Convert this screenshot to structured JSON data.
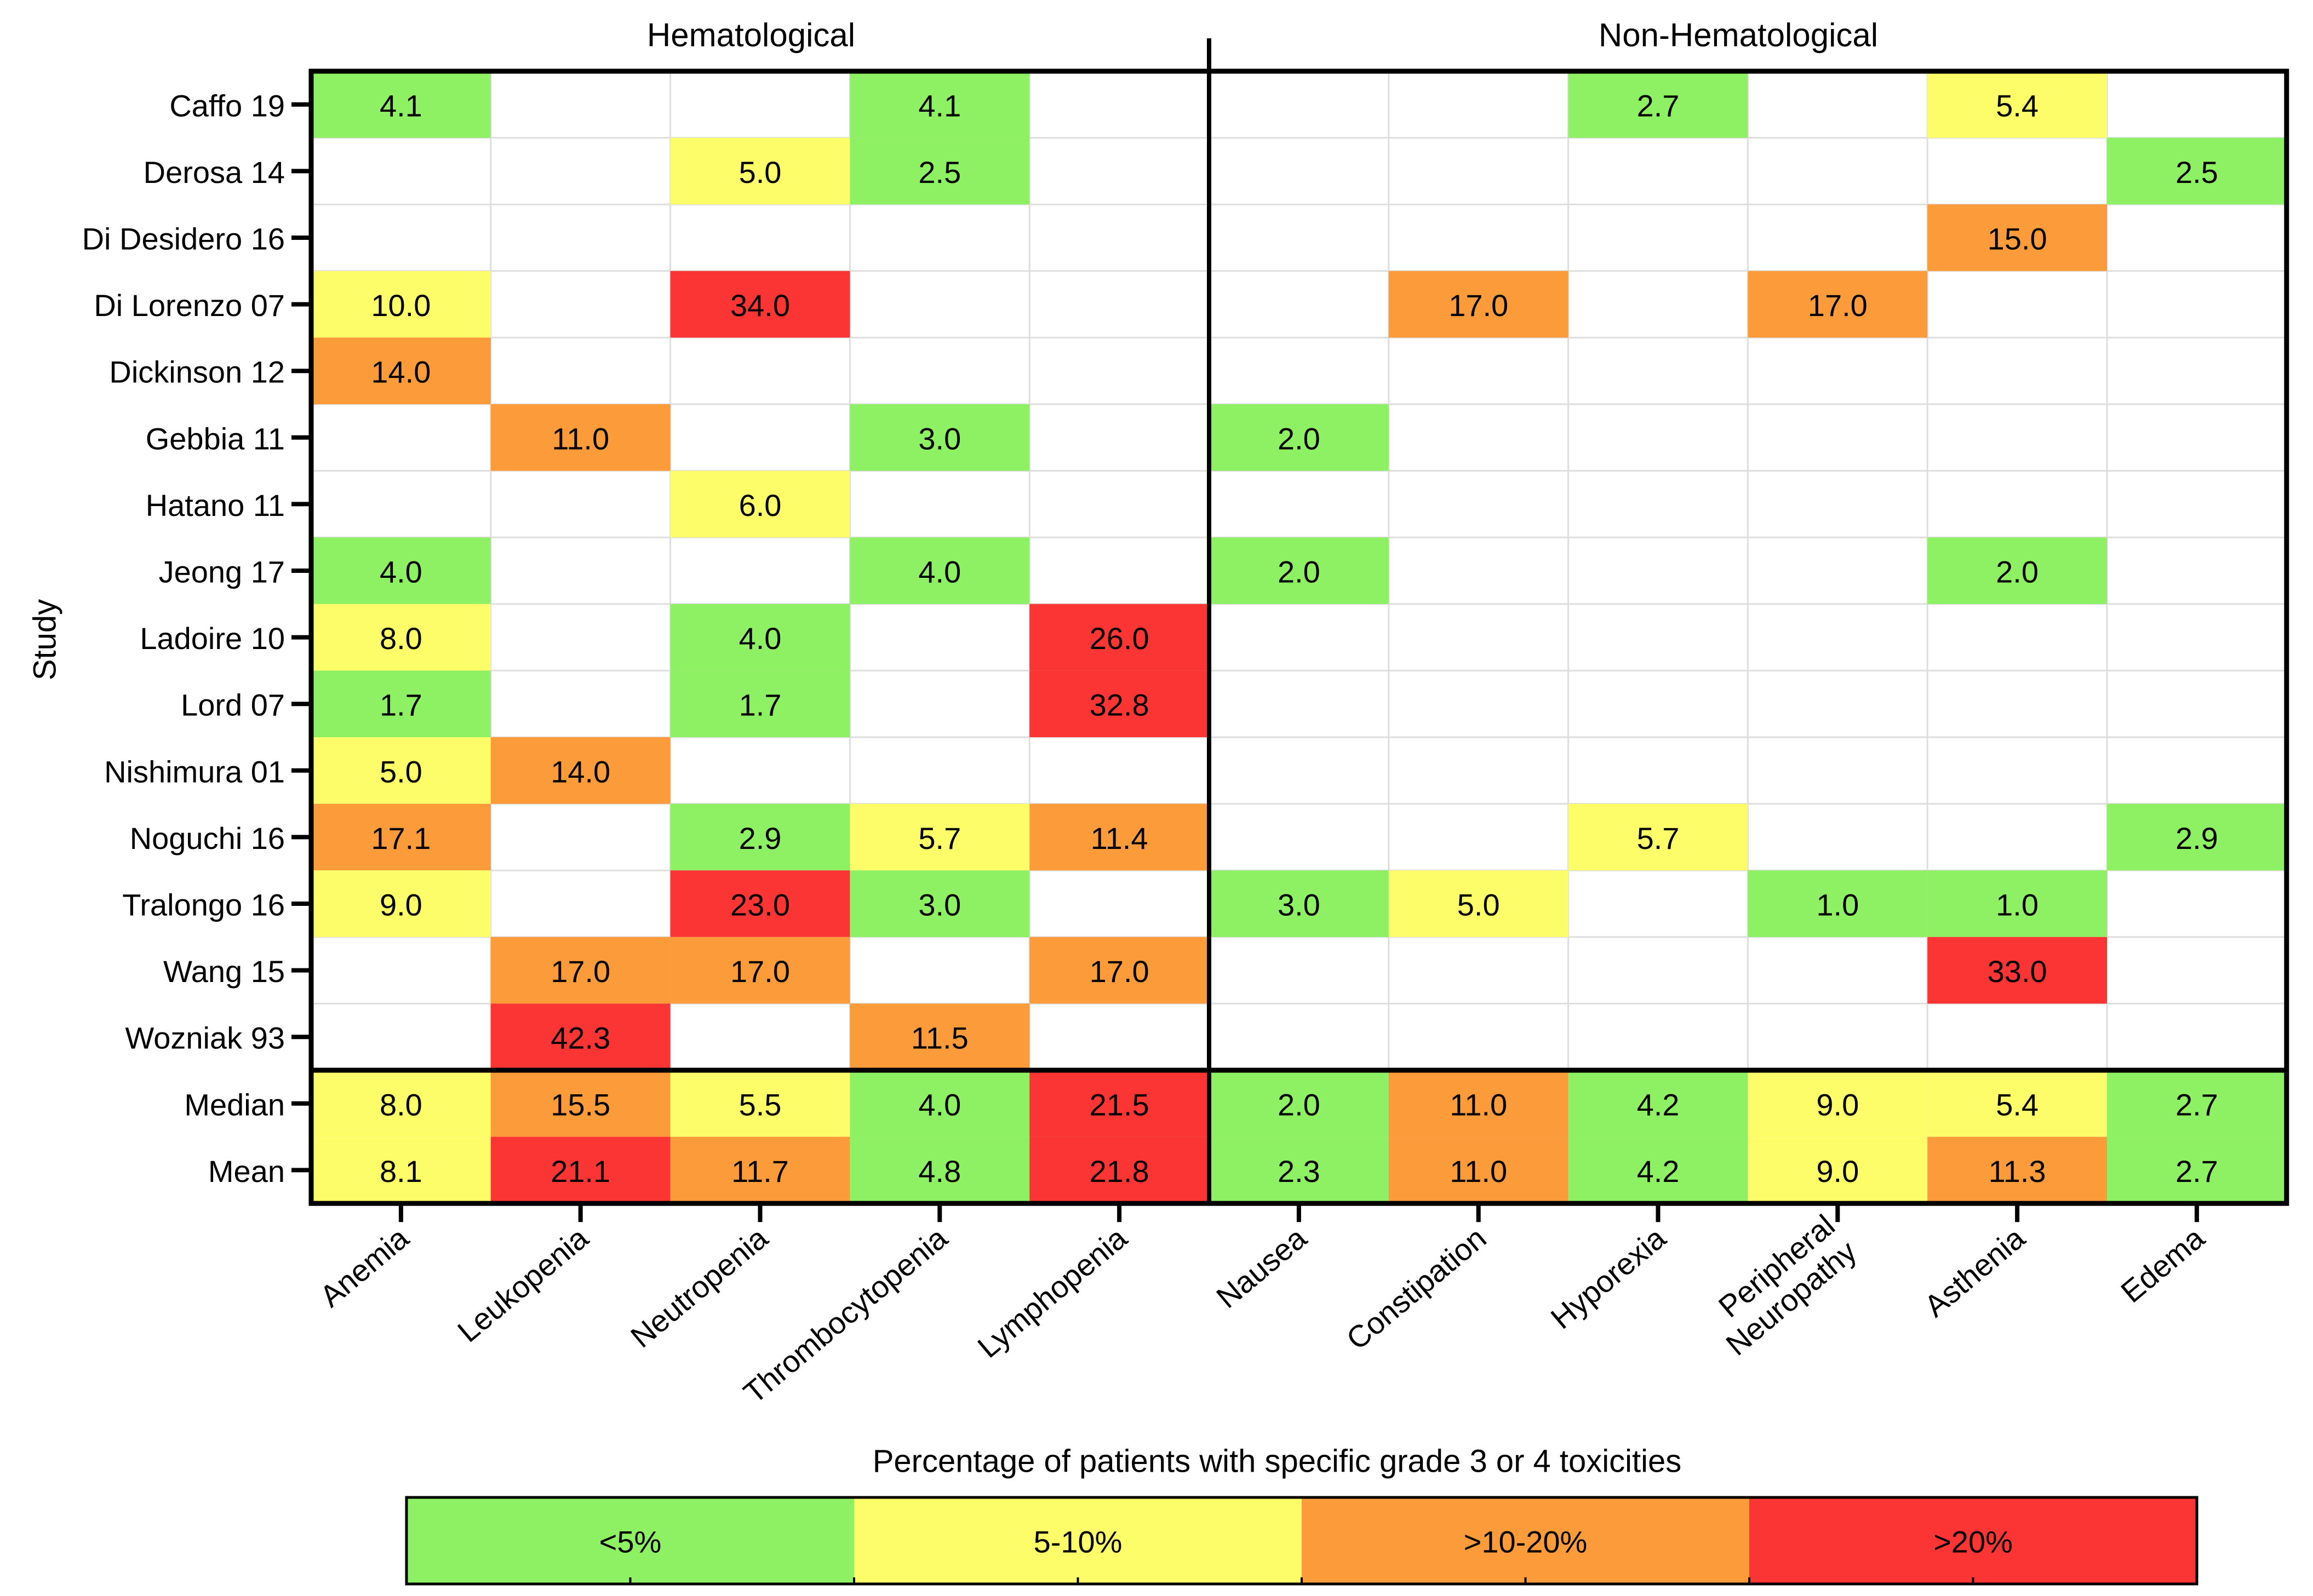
{
  "chart_data": {
    "type": "heatmap",
    "ylabel": "Study",
    "groups": [
      {
        "label": "Hematological",
        "columns": [
          0,
          1,
          2,
          3,
          4
        ]
      },
      {
        "label": "Non-Hematological",
        "columns": [
          5,
          6,
          7,
          8,
          9,
          10
        ]
      }
    ],
    "columns": [
      "Anemia",
      "Leukopenia",
      "Neutropenia",
      "Thrombocytopenia",
      "Lymphopenia",
      "Nausea",
      "Constipation",
      "Hyporexia",
      "Peripheral Neuropathy",
      "Asthenia",
      "Edema"
    ],
    "rows": [
      "Caffo 19",
      "Derosa 14",
      "Di Desidero 16",
      "Di Lorenzo 07",
      "Dickinson 12",
      "Gebbia 11",
      "Hatano 11",
      "Jeong 17",
      "Ladoire 10",
      "Lord 07",
      "Nishimura 01",
      "Noguchi 16",
      "Tralongo 16",
      "Wang 15",
      "Wozniak 93"
    ],
    "values": [
      [
        "4.1",
        null,
        null,
        "4.1",
        null,
        null,
        null,
        "2.7",
        null,
        "5.4",
        null
      ],
      [
        null,
        null,
        "5.0",
        "2.5",
        null,
        null,
        null,
        null,
        null,
        null,
        "2.5"
      ],
      [
        null,
        null,
        null,
        null,
        null,
        null,
        null,
        null,
        null,
        "15.0",
        null
      ],
      [
        "10.0",
        null,
        "34.0",
        null,
        null,
        null,
        "17.0",
        null,
        "17.0",
        null,
        null
      ],
      [
        "14.0",
        null,
        null,
        null,
        null,
        null,
        null,
        null,
        null,
        null,
        null
      ],
      [
        null,
        "11.0",
        null,
        "3.0",
        null,
        "2.0",
        null,
        null,
        null,
        null,
        null
      ],
      [
        null,
        null,
        "6.0",
        null,
        null,
        null,
        null,
        null,
        null,
        null,
        null
      ],
      [
        "4.0",
        null,
        null,
        "4.0",
        null,
        "2.0",
        null,
        null,
        null,
        "2.0",
        null
      ],
      [
        "8.0",
        null,
        "4.0",
        null,
        "26.0",
        null,
        null,
        null,
        null,
        null,
        null
      ],
      [
        "1.7",
        null,
        "1.7",
        null,
        "32.8",
        null,
        null,
        null,
        null,
        null,
        null
      ],
      [
        "5.0",
        "14.0",
        null,
        null,
        null,
        null,
        null,
        null,
        null,
        null,
        null
      ],
      [
        "17.1",
        null,
        "2.9",
        "5.7",
        "11.4",
        null,
        null,
        "5.7",
        null,
        null,
        "2.9"
      ],
      [
        "9.0",
        null,
        "23.0",
        "3.0",
        null,
        "3.0",
        "5.0",
        null,
        "1.0",
        "1.0",
        null
      ],
      [
        null,
        "17.0",
        "17.0",
        null,
        "17.0",
        null,
        null,
        null,
        null,
        "33.0",
        null
      ],
      [
        null,
        "42.3",
        null,
        "11.5",
        null,
        null,
        null,
        null,
        null,
        null,
        null
      ]
    ],
    "summary_rows": [
      "Median",
      "Mean"
    ],
    "summary_values": [
      [
        "8.0",
        "15.5",
        "5.5",
        "4.0",
        "21.5",
        "2.0",
        "11.0",
        "4.2",
        "9.0",
        "5.4",
        "2.7"
      ],
      [
        "8.1",
        "21.1",
        "11.7",
        "4.8",
        "21.8",
        "2.3",
        "11.0",
        "4.2",
        "9.0",
        "11.3",
        "2.7"
      ]
    ],
    "legend": {
      "title": "Percentage of patients with specific grade 3 or 4 toxicities",
      "bins": [
        {
          "label": "<5%",
          "max": 5,
          "color": "#8ef063"
        },
        {
          "label": "5-10%",
          "max": 10,
          "color": "#fdfd6a"
        },
        {
          "label": ">10-20%",
          "max": 20,
          "color": "#fb9b3a"
        },
        {
          "label": ">20%",
          "max": 1000,
          "color": "#fb3434"
        }
      ]
    }
  }
}
